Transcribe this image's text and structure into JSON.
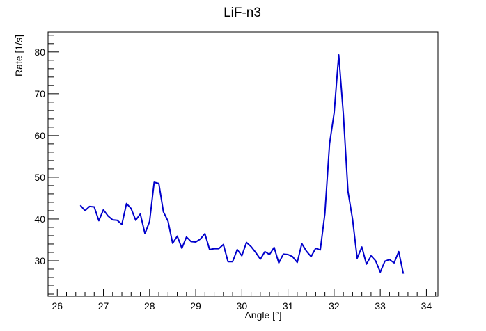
{
  "chart_data": {
    "type": "line",
    "title": "LiF-n3",
    "xlabel": "Angle [°]",
    "ylabel": "Rate [1/s]",
    "xlim": [
      25.8,
      34.25
    ],
    "ylim": [
      21.5,
      84.8
    ],
    "grid": false,
    "legend": "none",
    "line_color": "#0000cc",
    "x_ticks": [
      "26",
      "27",
      "28",
      "29",
      "30",
      "31",
      "32",
      "33",
      "34"
    ],
    "y_ticks": [
      "30",
      "40",
      "50",
      "60",
      "70",
      "80"
    ],
    "series": [
      {
        "x": [
          26.5,
          26.6,
          26.7,
          26.8,
          26.9,
          27.0,
          27.1,
          27.2,
          27.3,
          27.4,
          27.5,
          27.6,
          27.7,
          27.8,
          27.9,
          28.0,
          28.1,
          28.2,
          28.3,
          28.4,
          28.5,
          28.6,
          28.7,
          28.8,
          28.9,
          29.0,
          29.1,
          29.2,
          29.3,
          29.4,
          29.5,
          29.6,
          29.7,
          29.8,
          29.9,
          30.0,
          30.1,
          30.2,
          30.3,
          30.4,
          30.5,
          30.6,
          30.7,
          30.8,
          30.9,
          31.0,
          31.1,
          31.2,
          31.3,
          31.4,
          31.5,
          31.6,
          31.7,
          31.8,
          31.9,
          32.0,
          32.1,
          32.2,
          32.3,
          32.4,
          32.5,
          32.6,
          32.7,
          32.8,
          32.9,
          33.0,
          33.1,
          33.2,
          33.3,
          33.4,
          33.5
        ],
        "y": [
          43.3,
          42.0,
          43.0,
          42.9,
          39.6,
          42.2,
          40.7,
          39.8,
          39.7,
          38.7,
          43.7,
          42.5,
          39.7,
          41.2,
          36.5,
          39.4,
          48.8,
          48.5,
          41.7,
          39.5,
          34.2,
          35.9,
          33.0,
          35.7,
          34.6,
          34.5,
          35.2,
          36.5,
          32.7,
          32.9,
          32.9,
          33.9,
          29.8,
          29.8,
          32.7,
          31.2,
          34.4,
          33.4,
          32.0,
          30.4,
          32.2,
          31.5,
          33.2,
          29.5,
          31.6,
          31.5,
          31.0,
          29.6,
          34.1,
          32.3,
          31.0,
          33.0,
          32.6,
          41.3,
          58.0,
          65.4,
          79.3,
          65.2,
          46.6,
          39.9,
          30.6,
          33.3,
          29.2,
          31.2,
          30.0,
          27.3,
          29.9,
          30.3,
          29.5,
          32.2,
          26.9
        ]
      }
    ]
  }
}
